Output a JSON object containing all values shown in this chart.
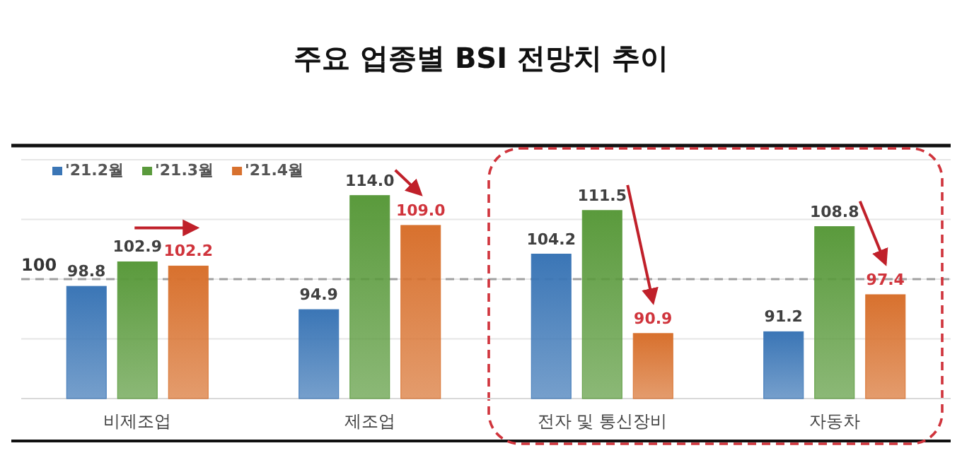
{
  "chart_data": {
    "type": "bar",
    "title": "주요 업종별 BSI 전망치 추이",
    "categories": [
      "비제조업",
      "제조업",
      "전자 및 통신장비",
      "자동차"
    ],
    "series": [
      {
        "name": "'21.2월",
        "color": "#3b76b6",
        "values": [
          98.8,
          94.9,
          104.2,
          91.2
        ],
        "value_labels": [
          "98.8",
          "94.9",
          "104.2",
          "91.2"
        ]
      },
      {
        "name": "'21.3월",
        "color": "#5a9a3c",
        "values": [
          102.9,
          114.0,
          111.5,
          108.8
        ],
        "value_labels": [
          "102.9",
          "114.0",
          "111.5",
          "108.8"
        ]
      },
      {
        "name": "'21.4월",
        "color": "#d8712e",
        "values": [
          102.2,
          109.0,
          90.9,
          97.4
        ],
        "value_labels": [
          "102.2",
          "109.0",
          "90.9",
          "97.4"
        ]
      }
    ],
    "ylim": [
      80,
      120
    ],
    "yticks": [
      {
        "value": 80,
        "label": null
      },
      {
        "value": 90,
        "label": null
      },
      {
        "value": 100,
        "label": null
      },
      {
        "value": 110,
        "label": null
      },
      {
        "value": 120,
        "label": null
      }
    ],
    "grid": "y",
    "legend": "top left",
    "tick_labels": "x",
    "ref_lines": [
      {
        "axis": "y",
        "value": 100,
        "label": "100",
        "color": "#a0a0a0",
        "line_style": "dashed"
      }
    ]
  }
}
